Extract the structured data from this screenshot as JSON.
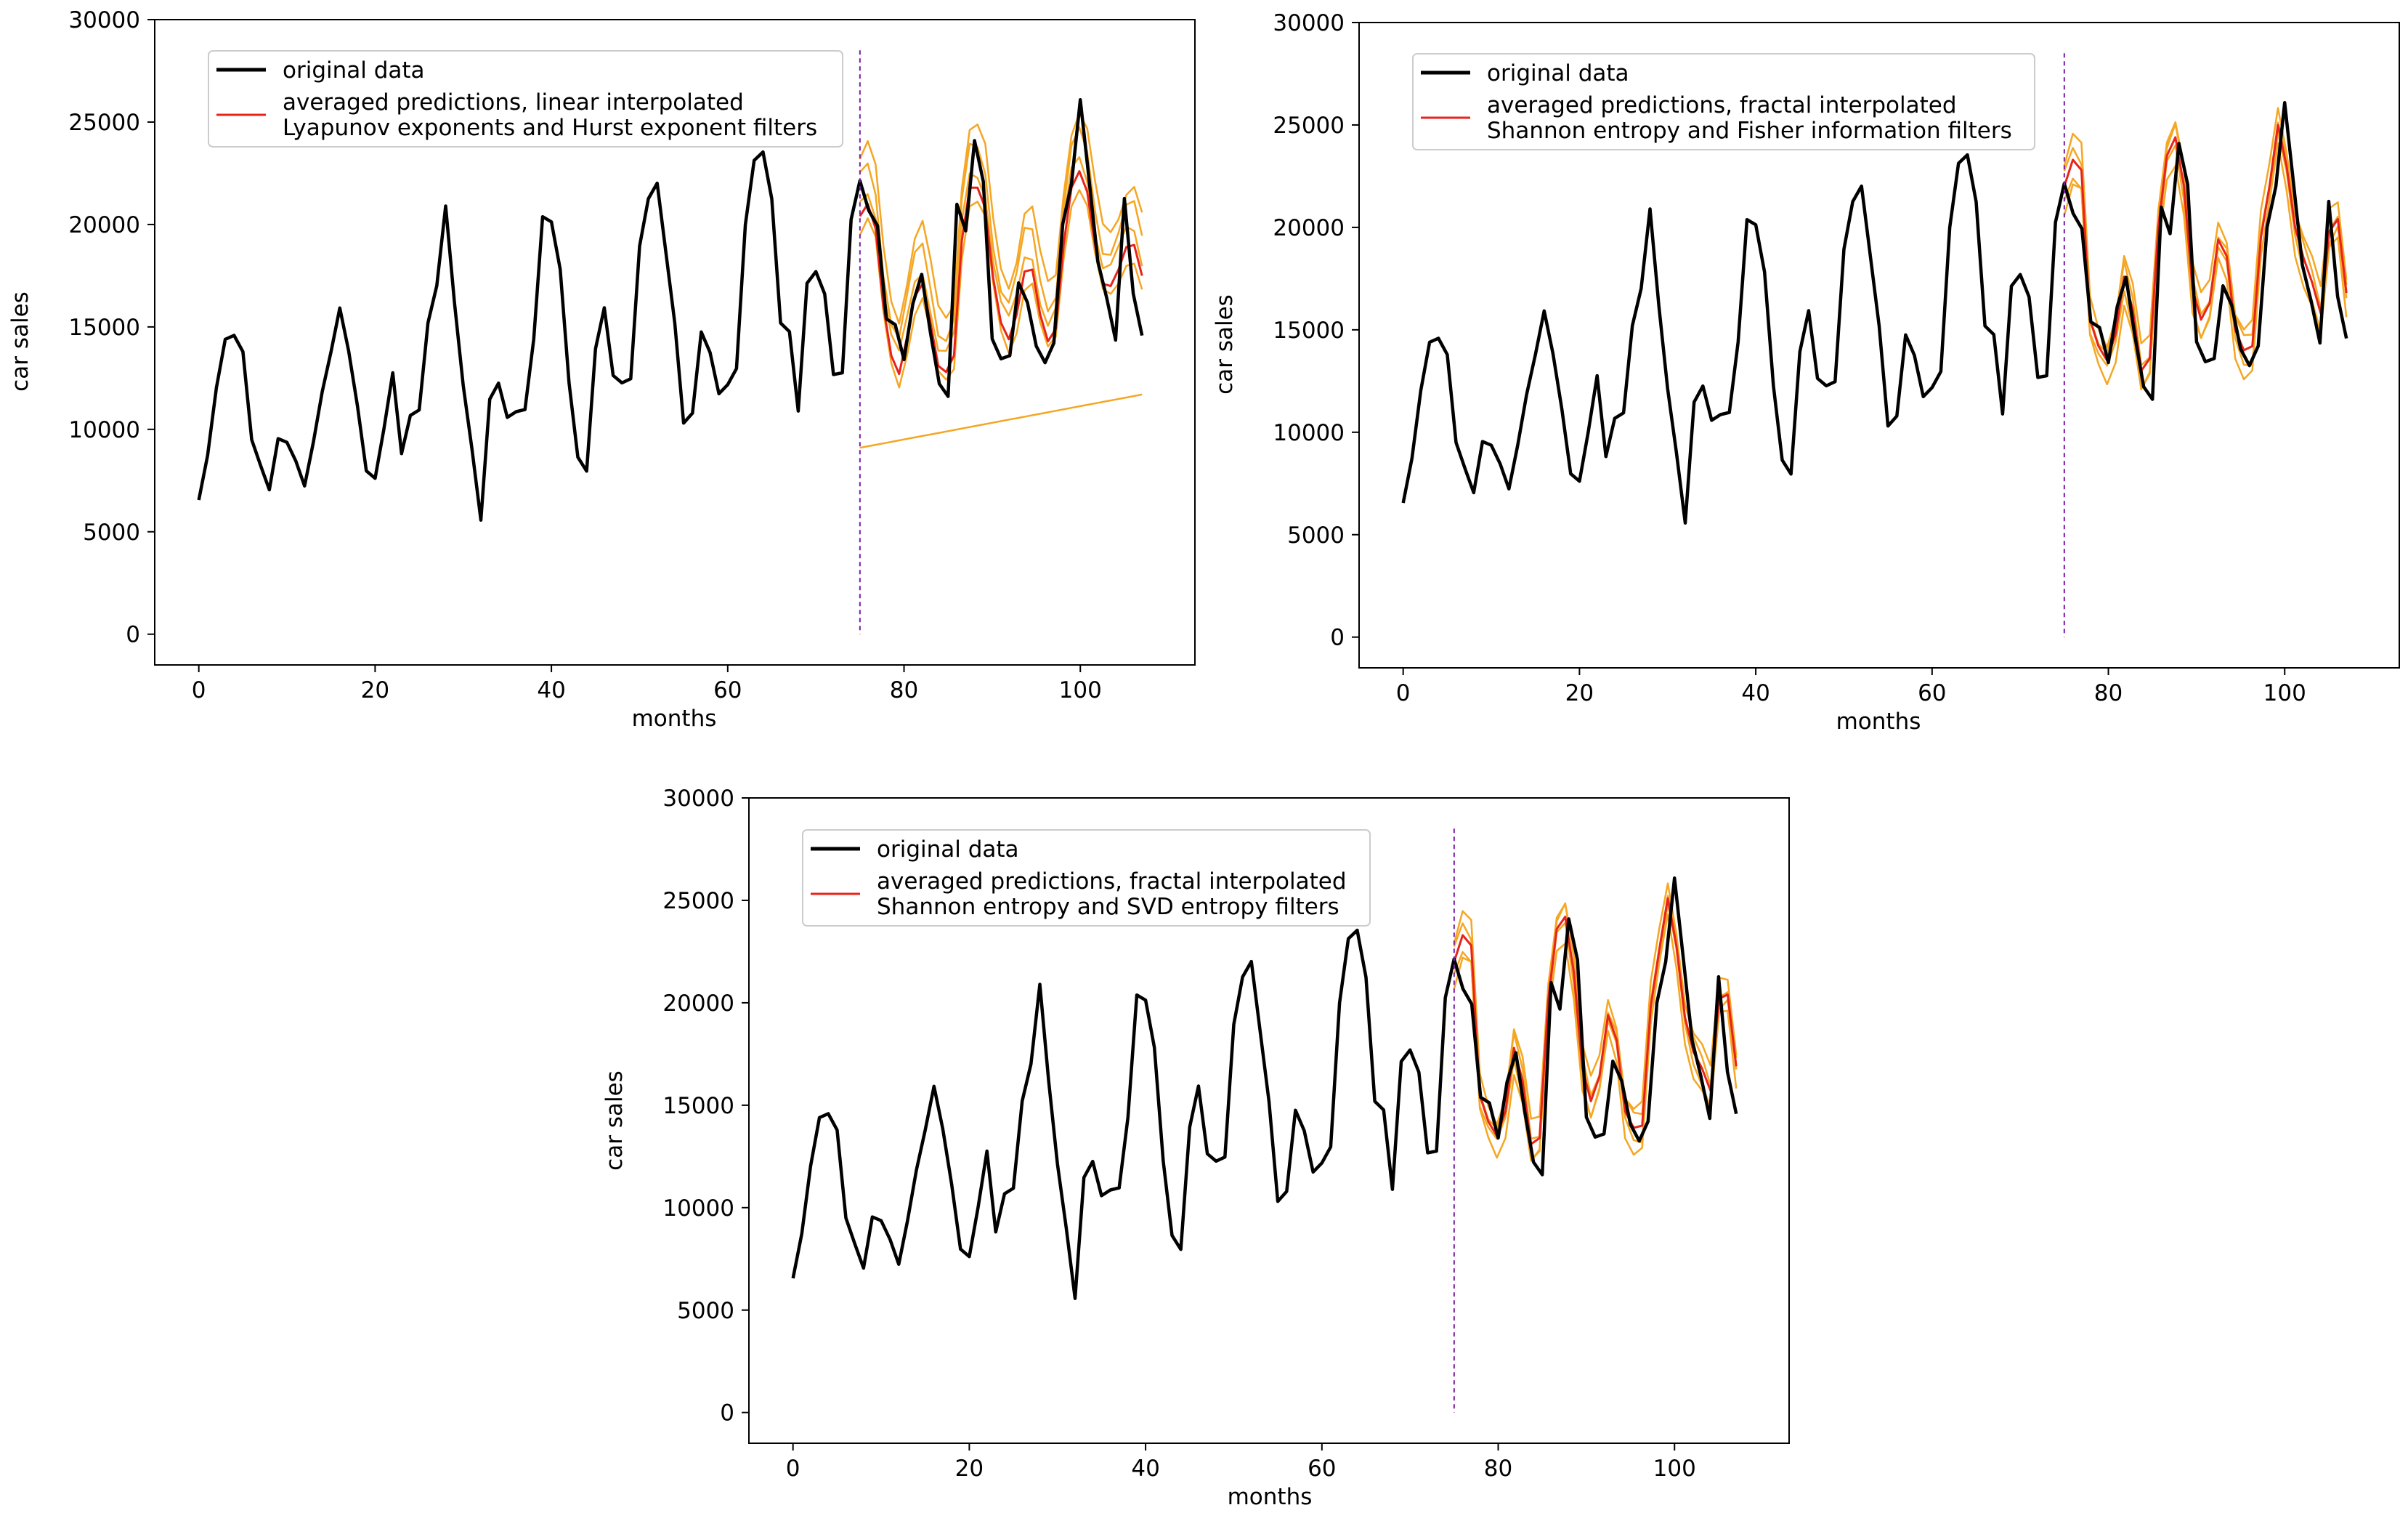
{
  "series_original": [
    6550,
    8728,
    12026,
    14395,
    14587,
    13791,
    9498,
    8251,
    7049,
    9545,
    9364,
    8456,
    7237,
    9374,
    11837,
    13784,
    15926,
    13821,
    11143,
    7975,
    7610,
    10015,
    12759,
    8816,
    10677,
    10947,
    15200,
    17010,
    20900,
    16205,
    12143,
    8997,
    5568,
    11474,
    12256,
    10583,
    10862,
    10965,
    14405,
    20379,
    20128,
    17816,
    12268,
    8642,
    7962,
    13932,
    15936,
    12628,
    12267,
    12470,
    18944,
    21259,
    22015,
    18581,
    15175,
    10306,
    10792,
    14752,
    13754,
    11738,
    12181,
    12965,
    19990,
    23125,
    23541,
    21247,
    15189,
    14767,
    10895,
    17130,
    17697,
    16611,
    12674,
    12760,
    20249,
    22135,
    20677,
    19933,
    15388,
    15113,
    13401,
    16135,
    17562,
    14720,
    12225,
    11608,
    20985,
    19692,
    24095,
    22096,
    14416,
    13445,
    13598,
    17149,
    16194,
    14062,
    13252,
    14210,
    20007,
    22006,
    26089,
    22151,
    18170,
    16407,
    14357,
    21270,
    16630,
    14580
  ],
  "chart_data": [
    {
      "type": "line",
      "xlabel": "months",
      "ylabel": "car sales",
      "xlim": [
        -5,
        113
      ],
      "ylim": [
        -1500,
        30000
      ],
      "xticks": [
        0,
        20,
        40,
        60,
        80,
        100
      ],
      "yticks": [
        0,
        5000,
        10000,
        15000,
        20000,
        25000,
        30000
      ],
      "split_month": 75,
      "legend": {
        "original": "original data",
        "averaged_line1": "averaged predictions, linear interpolated",
        "averaged_line2": "Lyapunov exponents and Hurst exponent filters"
      },
      "prediction_months": [
        75,
        107
      ],
      "averaged_prediction": [
        20400,
        21000,
        19800,
        16000,
        13600,
        12700,
        14500,
        16500,
        17100,
        15200,
        13100,
        12800,
        13600,
        19200,
        21800,
        21800,
        20800,
        17400,
        15200,
        14400,
        15600,
        17700,
        17800,
        15600,
        14300,
        14900,
        19000,
        21800,
        22600,
        21600,
        19000,
        17100,
        17000,
        17800,
        18900,
        19000,
        17500
      ],
      "ensemble_offsets": [
        2800,
        1800,
        800,
        -600
      ],
      "flat_prediction_start": 9100,
      "flat_prediction_end": 11700
    },
    {
      "type": "line",
      "xlabel": "months",
      "ylabel": "car sales",
      "xlim": [
        -5,
        113
      ],
      "ylim": [
        -1500,
        30000
      ],
      "xticks": [
        0,
        20,
        40,
        60,
        80,
        100
      ],
      "yticks": [
        0,
        5000,
        10000,
        15000,
        20000,
        25000,
        30000
      ],
      "split_month": 75,
      "legend": {
        "original": "original data",
        "averaged_line1": "averaged predictions, fractal interpolated",
        "averaged_line2": "Shannon entropy and Fisher information filters"
      },
      "prediction_months": [
        75,
        107
      ],
      "averaged_prediction": [
        22000,
        23300,
        22800,
        15500,
        14200,
        13500,
        14800,
        17600,
        16000,
        13000,
        13600,
        20000,
        23500,
        24400,
        22000,
        17000,
        15500,
        16300,
        19400,
        18600,
        15000,
        14000,
        14200,
        19500,
        22000,
        25000,
        23000,
        20000,
        18500,
        17300,
        15800,
        19800,
        20400,
        16800
      ],
      "ensemble_offsets": [
        1000,
        400,
        -600,
        -1100
      ]
    },
    {
      "type": "line",
      "xlabel": "months",
      "ylabel": "car sales",
      "xlim": [
        -5,
        113
      ],
      "ylim": [
        -1500,
        30000
      ],
      "xticks": [
        0,
        20,
        40,
        60,
        80,
        100
      ],
      "yticks": [
        0,
        5000,
        10000,
        15000,
        20000,
        25000,
        30000
      ],
      "split_month": 75,
      "legend": {
        "original": "original data",
        "averaged_line1": "averaged predictions, fractal interpolated",
        "averaged_line2": "Shannon entropy and SVD entropy filters"
      },
      "prediction_months": [
        75,
        107
      ],
      "averaged_prediction": [
        22000,
        23300,
        22800,
        15500,
        14200,
        13500,
        14700,
        17800,
        16200,
        13100,
        13400,
        20100,
        23600,
        24200,
        21500,
        16800,
        15200,
        16400,
        19400,
        18200,
        14700,
        13900,
        14000,
        19800,
        22600,
        25100,
        22800,
        19300,
        17600,
        16800,
        15700,
        20200,
        20400,
        16900
      ],
      "ensemble_offsets": [
        900,
        400,
        -500,
        -1000
      ]
    }
  ],
  "colors": {
    "original": "#000000",
    "averaged": "#e8231a",
    "ensemble": "#f5a623",
    "split": "#7b1fa2"
  }
}
